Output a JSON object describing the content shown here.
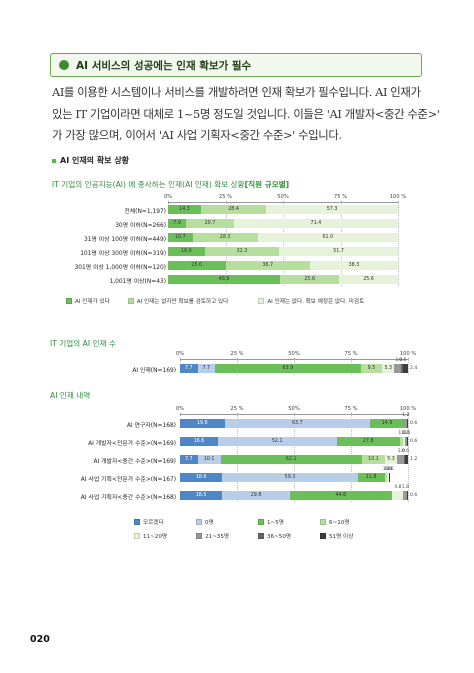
{
  "section": {
    "title": "AI 서비스의 성공에는 인재 확보가 필수"
  },
  "body_lines": [
    "AI를 이용한 시스템이나 서비스를 개발하려면 인재 확보가 필수입니다. AI 인재가",
    "있는 IT 기업이라면 대체로 1~5명 정도일 것입니다. 이들은 'AI 개발자<중간 수준>'",
    "가 가장 많으며, 이어서 'AI 사업 기획자<중간 수준>' 수입니다."
  ],
  "sub_heading": "AI 인재의 확보 상황",
  "page_number": "020",
  "colors": {
    "green_dark": "#6bbf59",
    "green_light": "#b8de9f",
    "green_pale": "#e6f2da",
    "blue": "#4f86c6",
    "blue_light": "#b7cde8",
    "gray1": "#999999",
    "gray2": "#666666",
    "gray3": "#3c3c3c",
    "accent": "#2e8b3a"
  },
  "chart_data": [
    {
      "type": "bar",
      "stacked": true,
      "orientation": "horizontal",
      "title": "IT 기업의 인공지능(AI) 에 종사하는 인재(AI 인재) 확보 상황",
      "title_suffix": "[직원 규모별]",
      "ticks": [
        "0%",
        "25 %",
        "50%",
        "75 %",
        "100 %"
      ],
      "categories": [
        "전체(N=1,197)",
        "30명 이하(N=266)",
        "31명 이상 100명 이하(N=449)",
        "101명 이상 300명 이하(N=319)",
        "301명 이상 1,000명 이하(N=120)",
        "1,001명 이상(N=43)"
      ],
      "series": [
        {
          "name": "AI 인재가 있다",
          "color": "#6bbf59",
          "values": [
            14.3,
            7.9,
            10.7,
            16.0,
            25.0,
            48.8
          ]
        },
        {
          "name": "AI 인재는 없지만 확보를 검토하고 있다",
          "color": "#b8de9f",
          "values": [
            28.4,
            20.7,
            28.3,
            32.3,
            36.7,
            25.6
          ]
        },
        {
          "name": "AI 인재는 없다. 확보 예정은 없다. 미검토",
          "color": "#e6f2da",
          "values": [
            57.3,
            71.4,
            61.0,
            51.7,
            38.3,
            25.6
          ]
        }
      ],
      "xlim": [
        0,
        100
      ]
    },
    {
      "type": "bar",
      "stacked": true,
      "orientation": "horizontal",
      "title": "IT 기업의 AI 인재 수",
      "ticks": [
        "0%",
        "25 %",
        "50%",
        "75 %",
        "100 %"
      ],
      "categories": [
        "AI 인재(N=169)"
      ],
      "series": [
        {
          "name": "모르겠다",
          "color": "#4f86c6",
          "values": [
            7.7
          ]
        },
        {
          "name": "0명",
          "color": "#b7cde8",
          "values": [
            7.7
          ]
        },
        {
          "name": "1~5명",
          "color": "#6bbf59",
          "values": [
            63.9
          ]
        },
        {
          "name": "6~10명",
          "color": "#b8de9f",
          "values": [
            9.5
          ]
        },
        {
          "name": "11~20명",
          "color": "#e6f2da",
          "values": [
            5.3
          ]
        },
        {
          "name": "21~35명",
          "color": "#999999",
          "values": [
            3.0
          ]
        },
        {
          "name": "36~50명",
          "color": "#666666",
          "values": [
            0.6
          ]
        },
        {
          "name": "51명 이상",
          "color": "#3c3c3c",
          "values": [
            2.4
          ]
        }
      ],
      "xlim": [
        0,
        100
      ]
    },
    {
      "type": "bar",
      "stacked": true,
      "orientation": "horizontal",
      "title": "AI 인재 내역",
      "ticks": [
        "0%",
        "25 %",
        "50%",
        "75 %",
        "100 %"
      ],
      "categories": [
        "AI 연구자(N=168)",
        "AI 개발자<전문가 수준>(N=169)",
        "AI 개발자<중간 수준>(N=169)",
        "AI 사업 기획<전문가 수준>(N=167)",
        "AI 사업 기획자<중간 수준>(N=168)"
      ],
      "series": [
        {
          "name": "모르겠다",
          "color": "#4f86c6",
          "values": [
            19.6,
            16.6,
            7.7,
            18.6,
            18.5
          ]
        },
        {
          "name": "0명",
          "color": "#b7cde8",
          "values": [
            63.7,
            52.1,
            10.1,
            59.3,
            29.8
          ]
        },
        {
          "name": "1~5명",
          "color": "#6bbf59",
          "values": [
            14.9,
            27.8,
            62.1,
            11.8,
            44.6
          ]
        },
        {
          "name": "6~10명",
          "color": "#b8de9f",
          "values": [
            0,
            1.2,
            10.1,
            1.2,
            0
          ]
        },
        {
          "name": "11~20명",
          "color": "#e6f2da",
          "values": [
            0,
            1.2,
            5.3,
            0.6,
            4.8
          ]
        },
        {
          "name": "21~35명",
          "color": "#999999",
          "values": [
            1.2,
            0.6,
            3.0,
            0,
            1.8
          ]
        },
        {
          "name": "36~50명",
          "color": "#666666",
          "values": [
            0,
            0,
            0.6,
            0,
            0
          ]
        },
        {
          "name": "51명 이상",
          "color": "#3c3c3c",
          "values": [
            0.6,
            0.6,
            1.2,
            0.6,
            0.6
          ]
        }
      ],
      "xlim": [
        0,
        100
      ]
    }
  ]
}
